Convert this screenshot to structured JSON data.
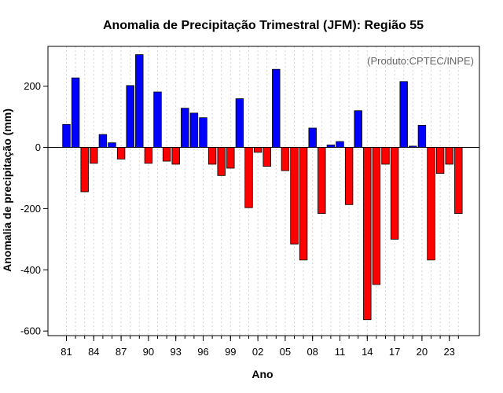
{
  "colors": {
    "positive": "#0000ff",
    "negative": "#ff0000",
    "grid": "#d3d3d3",
    "annotation": "#666666"
  },
  "chart_data": {
    "type": "bar",
    "title": "Anomalia de Precipitação Trimestral (JFM): Região 55",
    "xlabel": "Ano",
    "ylabel": "Anomalia de precipitação (mm)",
    "annotation": "(Produto:CPTEC/INPE)",
    "ylim": [
      -615,
      330
    ],
    "yticks": [
      -600,
      -400,
      -200,
      0,
      200
    ],
    "ytick_labels": [
      "-600",
      "-400",
      "-200",
      "0",
      "200"
    ],
    "xtick_years": [
      1981,
      1984,
      1987,
      1990,
      1993,
      1996,
      1999,
      2002,
      2005,
      2008,
      2011,
      2014,
      2017,
      2020,
      2023
    ],
    "xtick_labels": [
      "81",
      "84",
      "87",
      "90",
      "93",
      "96",
      "99",
      "02",
      "05",
      "08",
      "11",
      "14",
      "17",
      "20",
      "23"
    ],
    "grid": true,
    "legend": "none",
    "categories": [
      "1981",
      "1982",
      "1983",
      "1984",
      "1985",
      "1986",
      "1987",
      "1988",
      "1989",
      "1990",
      "1991",
      "1992",
      "1993",
      "1994",
      "1995",
      "1996",
      "1997",
      "1998",
      "1999",
      "2000",
      "2001",
      "2002",
      "2003",
      "2004",
      "2005",
      "2006",
      "2007",
      "2008",
      "2009",
      "2010",
      "2011",
      "2012",
      "2013",
      "2014",
      "2015",
      "2016",
      "2017",
      "2018",
      "2019",
      "2020",
      "2021",
      "2022",
      "2023",
      "2024"
    ],
    "values": [
      75,
      227,
      -145,
      -52,
      42,
      15,
      -38,
      202,
      303,
      -52,
      181,
      -45,
      -55,
      128,
      112,
      97,
      -55,
      -92,
      -68,
      159,
      -197,
      -16,
      -62,
      255,
      -76,
      -316,
      -368,
      63,
      -216,
      8,
      19,
      -187,
      120,
      -563,
      -448,
      -55,
      -300,
      215,
      4,
      72,
      -368,
      -85,
      -55,
      -216
    ]
  }
}
